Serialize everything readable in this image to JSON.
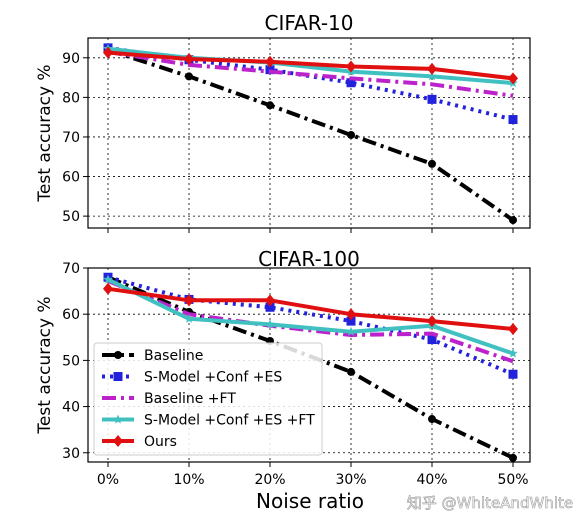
{
  "figure": {
    "shared_xlabel": "Noise ratio",
    "shared_ylabel": "Test accuracy %",
    "watermark": "知乎 @WhiteAndWhite"
  },
  "series_styles": [
    {
      "name": "Baseline",
      "color": "#000000",
      "marker": "circle",
      "dash": "dashdot"
    },
    {
      "name": "S-Model +Conf +ES",
      "color": "#2222dd",
      "marker": "square",
      "dash": "dotted"
    },
    {
      "name": "Baseline +FT",
      "color": "#bb22cc",
      "marker": "none",
      "dash": "dashdot"
    },
    {
      "name": "S-Model +Conf +ES +FT",
      "color": "#40c0c0",
      "marker": "star",
      "dash": "solid"
    },
    {
      "name": "Ours",
      "color": "#e01010",
      "marker": "diamond",
      "dash": "solid"
    }
  ],
  "chart_data": [
    {
      "type": "line",
      "title": "CIFAR-10",
      "xlabel": "",
      "ylabel": "Test accuracy %",
      "categories": [
        "0%",
        "10%",
        "20%",
        "30%",
        "40%",
        "50%"
      ],
      "ylim": [
        47,
        95
      ],
      "yticks": [
        50,
        60,
        70,
        80,
        90
      ],
      "grid": true,
      "show_xticklabels": false,
      "legend": "none",
      "series": [
        {
          "name": "Baseline",
          "values": [
            92.0,
            85.3,
            78.0,
            70.5,
            63.2,
            49.0
          ]
        },
        {
          "name": "S-Model +Conf +ES",
          "values": [
            92.5,
            89.5,
            87.0,
            83.7,
            79.5,
            74.4
          ]
        },
        {
          "name": "Baseline +FT",
          "values": [
            91.5,
            88.2,
            86.5,
            84.8,
            83.3,
            80.4
          ]
        },
        {
          "name": "S-Model +Conf +ES +FT",
          "values": [
            92.3,
            90.0,
            88.8,
            86.5,
            85.3,
            83.6
          ]
        },
        {
          "name": "Ours",
          "values": [
            91.3,
            89.7,
            89.0,
            87.8,
            87.2,
            84.8
          ]
        }
      ]
    },
    {
      "type": "line",
      "title": "CIFAR-100",
      "xlabel": "Noise ratio",
      "ylabel": "Test accuracy %",
      "categories": [
        "0%",
        "10%",
        "20%",
        "30%",
        "40%",
        "50%"
      ],
      "ylim": [
        28,
        70
      ],
      "yticks": [
        30,
        40,
        50,
        60,
        70
      ],
      "grid": true,
      "show_xticklabels": true,
      "legend": "lower-left",
      "series": [
        {
          "name": "Baseline",
          "values": [
            68.0,
            60.5,
            54.2,
            47.5,
            37.3,
            28.9
          ]
        },
        {
          "name": "S-Model +Conf +ES",
          "values": [
            68.0,
            63.2,
            61.5,
            58.5,
            54.5,
            47.0
          ]
        },
        {
          "name": "Baseline +FT",
          "values": [
            67.2,
            60.0,
            57.5,
            55.5,
            55.8,
            49.8
          ]
        },
        {
          "name": "S-Model +Conf +ES +FT",
          "values": [
            67.5,
            59.0,
            57.8,
            56.2,
            57.5,
            51.5
          ]
        },
        {
          "name": "Ours",
          "values": [
            65.5,
            63.0,
            63.0,
            60.0,
            58.5,
            56.8
          ]
        }
      ]
    }
  ]
}
